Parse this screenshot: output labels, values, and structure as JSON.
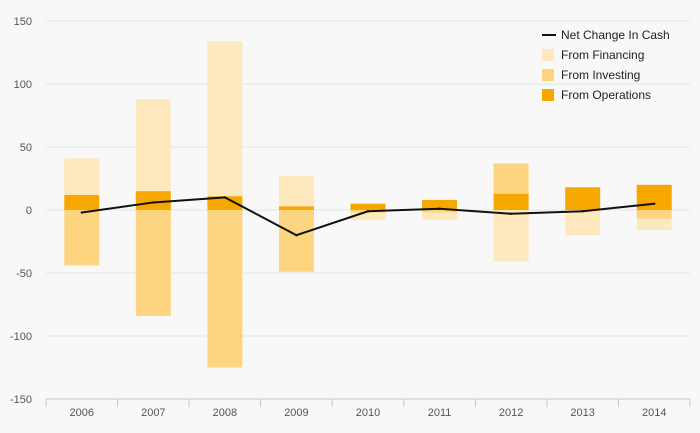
{
  "chart_data": {
    "type": "bar",
    "subtype": "stacked-bar-with-line",
    "categories": [
      "2006",
      "2007",
      "2008",
      "2009",
      "2010",
      "2011",
      "2012",
      "2013",
      "2014"
    ],
    "series": [
      {
        "name": "From Operations",
        "kind": "bar",
        "color": "#f6a800",
        "values": [
          12,
          15,
          11,
          3,
          5,
          8,
          13,
          18,
          20
        ]
      },
      {
        "name": "From Investing",
        "kind": "bar",
        "color": "#fdd580",
        "values": [
          -44,
          -84,
          -125,
          -49,
          -2,
          -2,
          24,
          0,
          -7
        ]
      },
      {
        "name": "From Financing",
        "kind": "bar",
        "color": "#fde9bd",
        "values": [
          29,
          73,
          123,
          24,
          -6,
          -6,
          -41,
          -20,
          -9
        ]
      },
      {
        "name": "Net Change In Cash",
        "kind": "line",
        "color": "#111111",
        "values": [
          -2,
          6,
          10,
          -20,
          -1,
          1,
          -3,
          -1,
          5
        ]
      }
    ],
    "ylim": [
      -150,
      150
    ],
    "yticks": [
      -150,
      -100,
      -50,
      0,
      50,
      100,
      150
    ],
    "legend_order": [
      "Net Change In Cash",
      "From Financing",
      "From Investing",
      "From Operations"
    ],
    "legend_position": "top-right",
    "grid": true
  }
}
